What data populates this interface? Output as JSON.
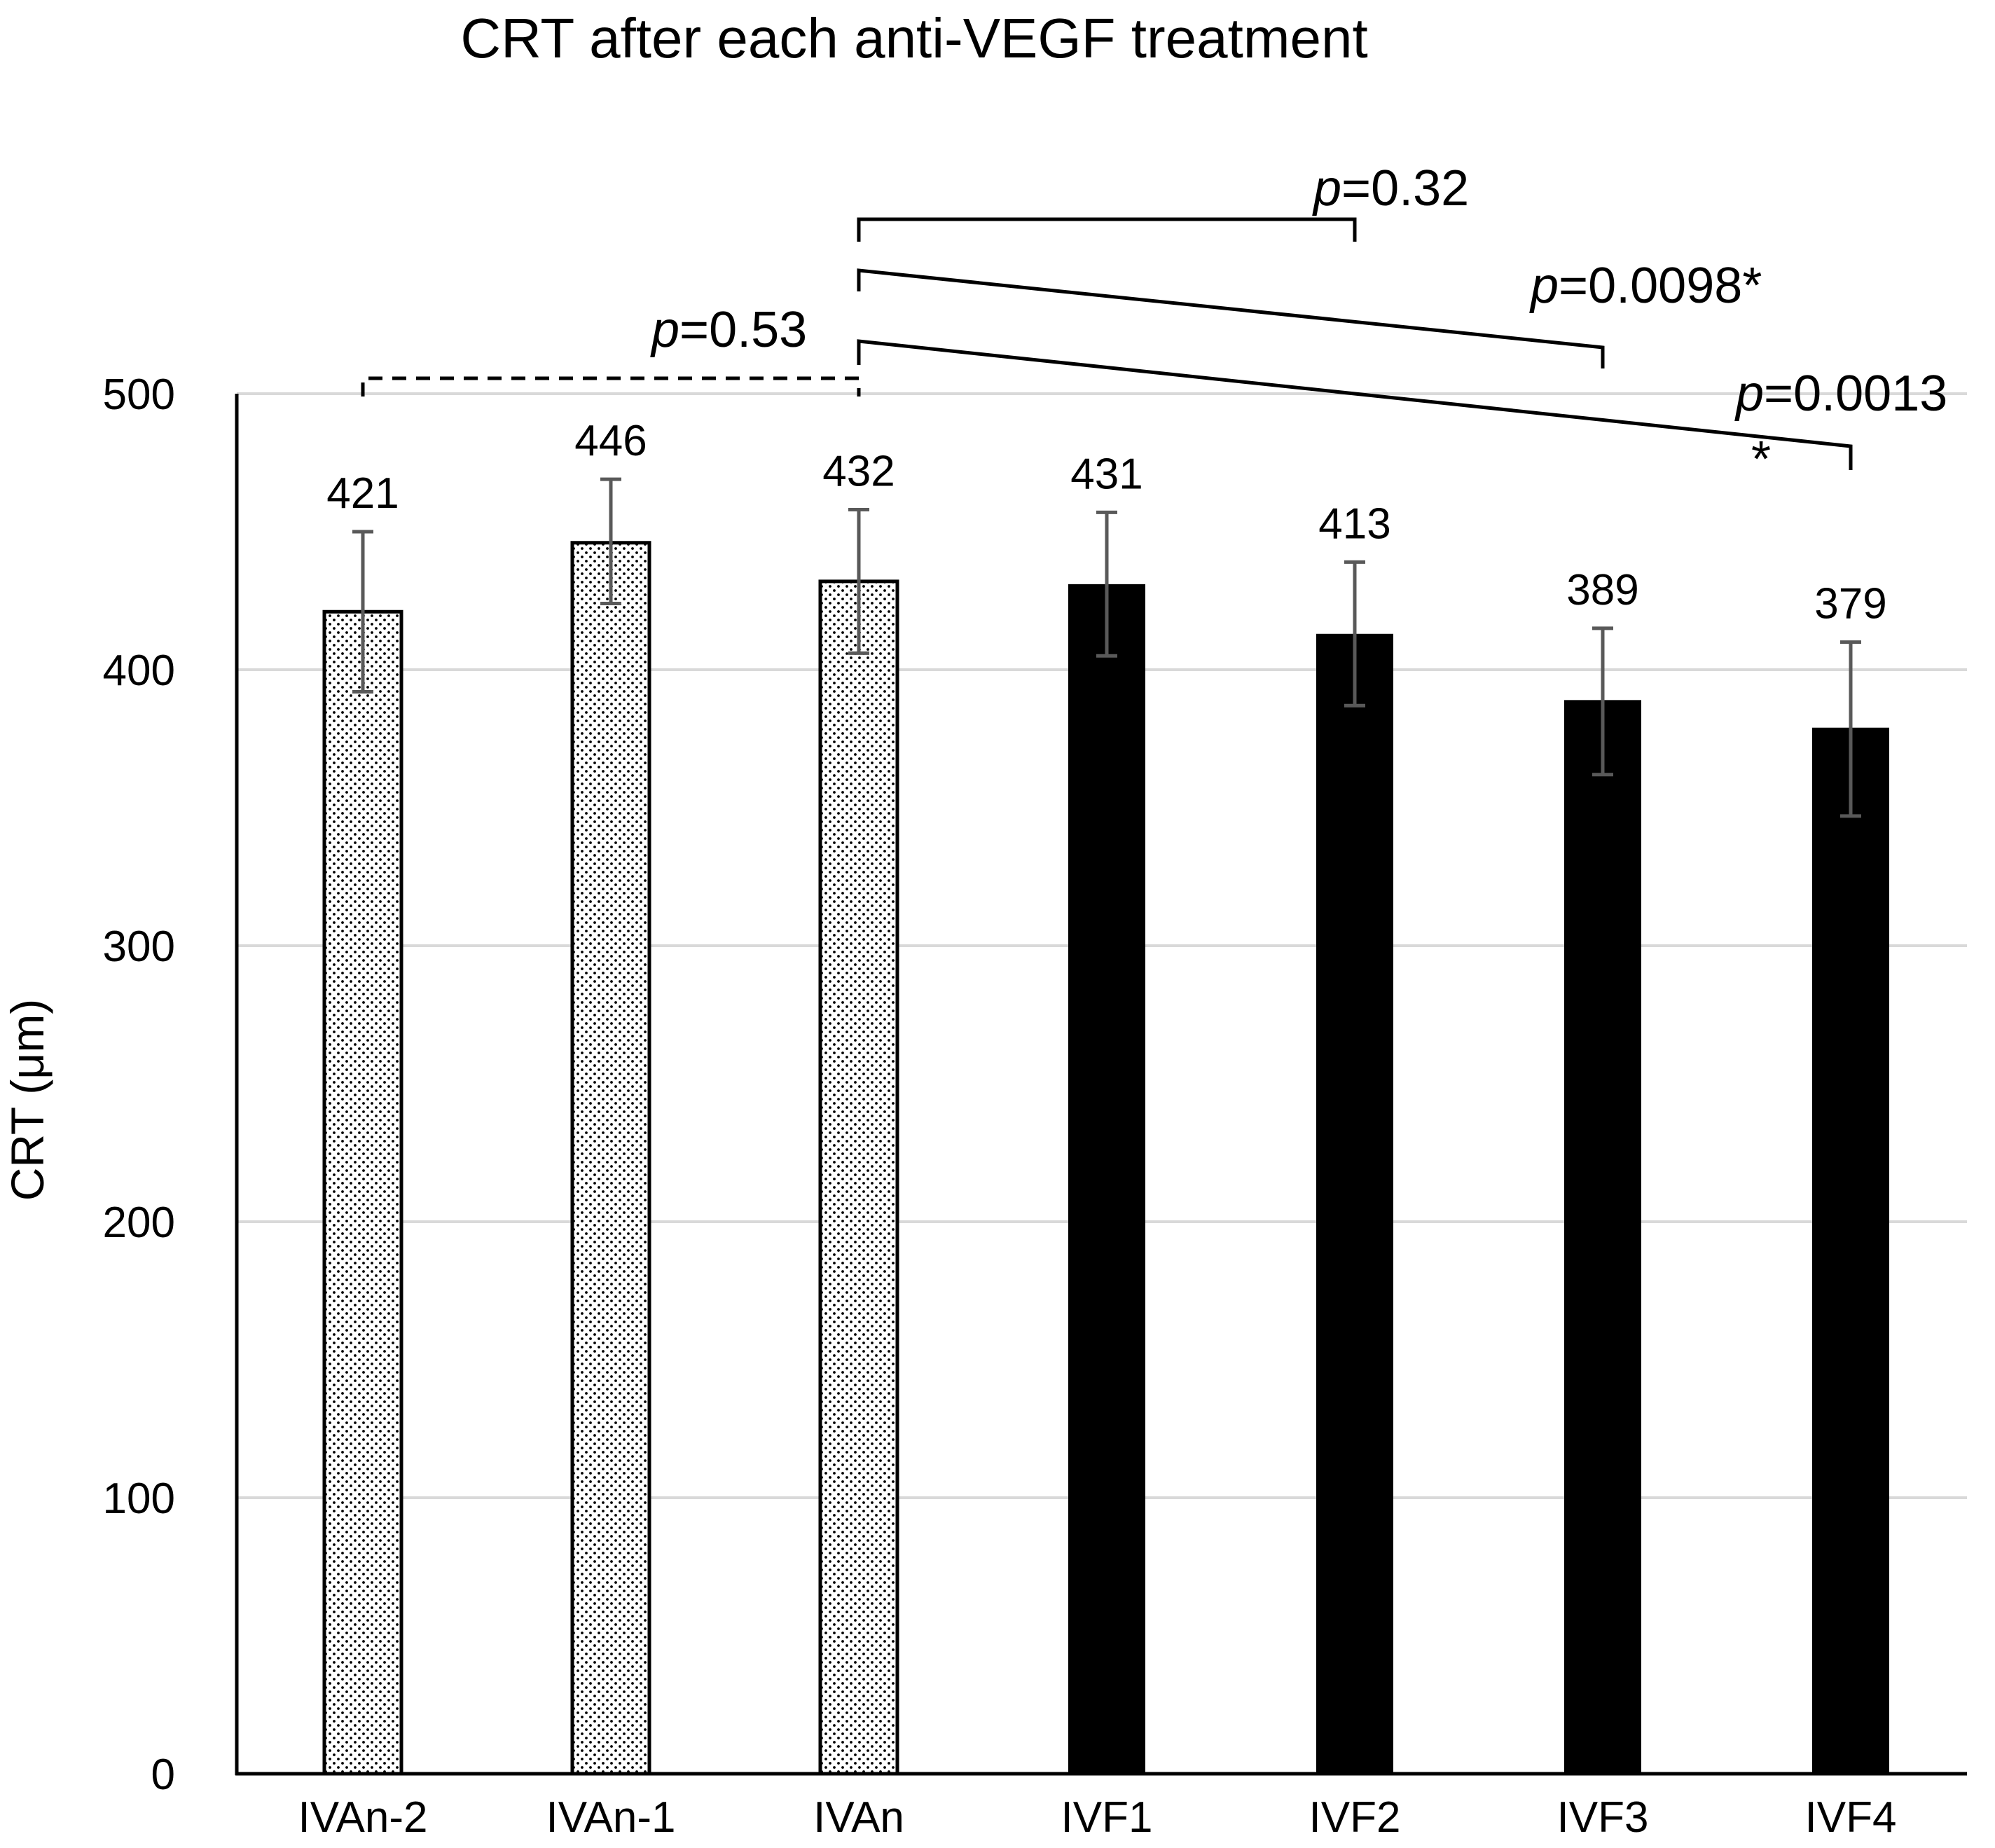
{
  "chart_data": {
    "type": "bar",
    "title": "CRT after each anti-VEGF treatment",
    "xlabel": "",
    "ylabel": "CRT (μm)",
    "ylim": [
      0,
      500
    ],
    "yticks": [
      "0",
      "100",
      "200",
      "300",
      "400",
      "500"
    ],
    "ytick_values": [
      0,
      100,
      200,
      300,
      400,
      500
    ],
    "grid": true,
    "categories": [
      "IVAn-2",
      "IVAn-1",
      "IVAn",
      "IVF1",
      "IVF2",
      "IVF3",
      "IVF4"
    ],
    "values": [
      421,
      446,
      432,
      431,
      413,
      389,
      379
    ],
    "value_labels": [
      "421",
      "446",
      "432",
      "431",
      "413",
      "389",
      "379"
    ],
    "error_low": [
      392,
      424,
      406,
      405,
      387,
      362,
      347
    ],
    "error_high": [
      450,
      469,
      458,
      457,
      439,
      415,
      410
    ],
    "fills": [
      "dotted",
      "dotted",
      "dotted",
      "solid",
      "solid",
      "solid",
      "solid"
    ],
    "colors": {
      "solid": "#000000",
      "dotted_bg": "#ffffff",
      "dot": "#000000",
      "error_bar": "#595959",
      "grid": "#d9d9d9",
      "axis": "#000000"
    },
    "annotations": [
      {
        "p_prefix": "p",
        "text": "=0.53",
        "star": "",
        "from": "IVAn-2",
        "to": "IVAn",
        "style": "dashed"
      },
      {
        "p_prefix": "p",
        "text": "=0.32",
        "star": "",
        "from": "IVAn",
        "to": "IVF2",
        "style": "solid"
      },
      {
        "p_prefix": "p",
        "text": "=0.0098",
        "star": "*",
        "from": "IVAn",
        "to": "IVF3",
        "style": "solid"
      },
      {
        "p_prefix": "p",
        "text": "=0.0013",
        "star": "*",
        "from": "IVAn",
        "to": "IVF4",
        "style": "solid"
      }
    ]
  }
}
